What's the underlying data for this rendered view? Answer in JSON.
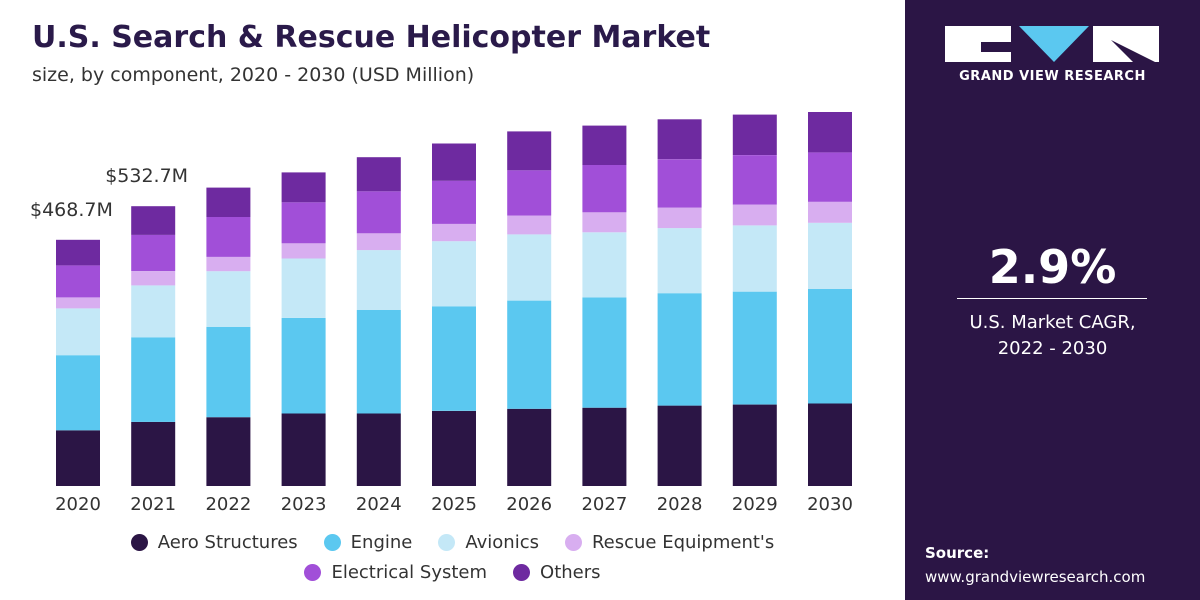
{
  "header": {
    "title": "U.S. Search & Rescue Helicopter Market",
    "subtitle": "size, by component, 2020 - 2030 (USD Million)"
  },
  "brand": {
    "name": "GRAND VIEW RESEARCH",
    "logo_icon": "gvr-logo-icon"
  },
  "kpi": {
    "value": "2.9%",
    "label_line1": "U.S. Market CAGR,",
    "label_line2": "2022 - 2030"
  },
  "source": {
    "label": "Source:",
    "url": "www.grandviewresearch.com"
  },
  "chart_data": {
    "type": "bar",
    "stacked": true,
    "title": "U.S. Search & Rescue Helicopter Market",
    "subtitle": "size, by component, 2020 - 2030 (USD Million)",
    "categories": [
      "2020",
      "2021",
      "2022",
      "2023",
      "2024",
      "2025",
      "2026",
      "2027",
      "2028",
      "2029",
      "2030"
    ],
    "annotations": [
      {
        "category": "2020",
        "text": "$468.7M"
      },
      {
        "category": "2021",
        "text": "$532.7M"
      }
    ],
    "totals": [
      468.7,
      532.7,
      568,
      597,
      626,
      652,
      675,
      686,
      698,
      707,
      712
    ],
    "series": [
      {
        "name": "Aero Structures",
        "color": "#2b1545",
        "values": [
          106,
          122,
          131,
          138,
          138,
          143,
          147,
          149,
          153,
          155,
          157
        ]
      },
      {
        "name": "Engine",
        "color": "#5bc8f0",
        "values": [
          143,
          161,
          172,
          182,
          197,
          199,
          206,
          210,
          214,
          215,
          218
        ]
      },
      {
        "name": "Avionics",
        "color": "#c4e8f7",
        "values": [
          89,
          99,
          106,
          113,
          114,
          124,
          126,
          124,
          124,
          126,
          126
        ]
      },
      {
        "name": "Rescue Equipment's",
        "color": "#d8aef0",
        "values": [
          21,
          27,
          27,
          29,
          32,
          33,
          36,
          38,
          39,
          40,
          40
        ]
      },
      {
        "name": "Electrical System",
        "color": "#a14fd8",
        "values": [
          61,
          69,
          76,
          78,
          80,
          82,
          86,
          90,
          92,
          94,
          94
        ]
      },
      {
        "name": "Others",
        "color": "#6e2aa0",
        "values": [
          48.7,
          54.7,
          56,
          57,
          65,
          71,
          74,
          75,
          76,
          77,
          77
        ]
      }
    ],
    "grid": false,
    "legend_position": "bottom"
  }
}
